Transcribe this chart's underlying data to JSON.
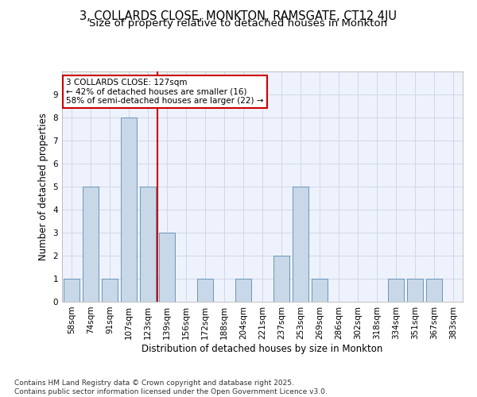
{
  "title": "3, COLLARDS CLOSE, MONKTON, RAMSGATE, CT12 4JU",
  "subtitle": "Size of property relative to detached houses in Monkton",
  "xlabel": "Distribution of detached houses by size in Monkton",
  "ylabel": "Number of detached properties",
  "categories": [
    "58sqm",
    "74sqm",
    "91sqm",
    "107sqm",
    "123sqm",
    "139sqm",
    "156sqm",
    "172sqm",
    "188sqm",
    "204sqm",
    "221sqm",
    "237sqm",
    "253sqm",
    "269sqm",
    "286sqm",
    "302sqm",
    "318sqm",
    "334sqm",
    "351sqm",
    "367sqm",
    "383sqm"
  ],
  "values": [
    1,
    5,
    1,
    8,
    5,
    3,
    0,
    1,
    0,
    1,
    0,
    2,
    5,
    1,
    0,
    0,
    0,
    1,
    1,
    1,
    0
  ],
  "bar_color": "#c8d8e8",
  "bar_edge_color": "#5a8ab0",
  "vline_index": 4,
  "vline_color": "#cc0000",
  "annotation_text": "3 COLLARDS CLOSE: 127sqm\n← 42% of detached houses are smaller (16)\n58% of semi-detached houses are larger (22) →",
  "annotation_box_color": "#ffffff",
  "annotation_box_edge": "#cc0000",
  "ylim": [
    0,
    10
  ],
  "yticks": [
    0,
    1,
    2,
    3,
    4,
    5,
    6,
    7,
    8,
    9,
    10
  ],
  "grid_color": "#d0d8e8",
  "bg_color": "#eef2fc",
  "footer": "Contains HM Land Registry data © Crown copyright and database right 2025.\nContains public sector information licensed under the Open Government Licence v3.0.",
  "title_fontsize": 10.5,
  "subtitle_fontsize": 9.5,
  "axis_label_fontsize": 8.5,
  "tick_fontsize": 7.5,
  "footer_fontsize": 6.5
}
